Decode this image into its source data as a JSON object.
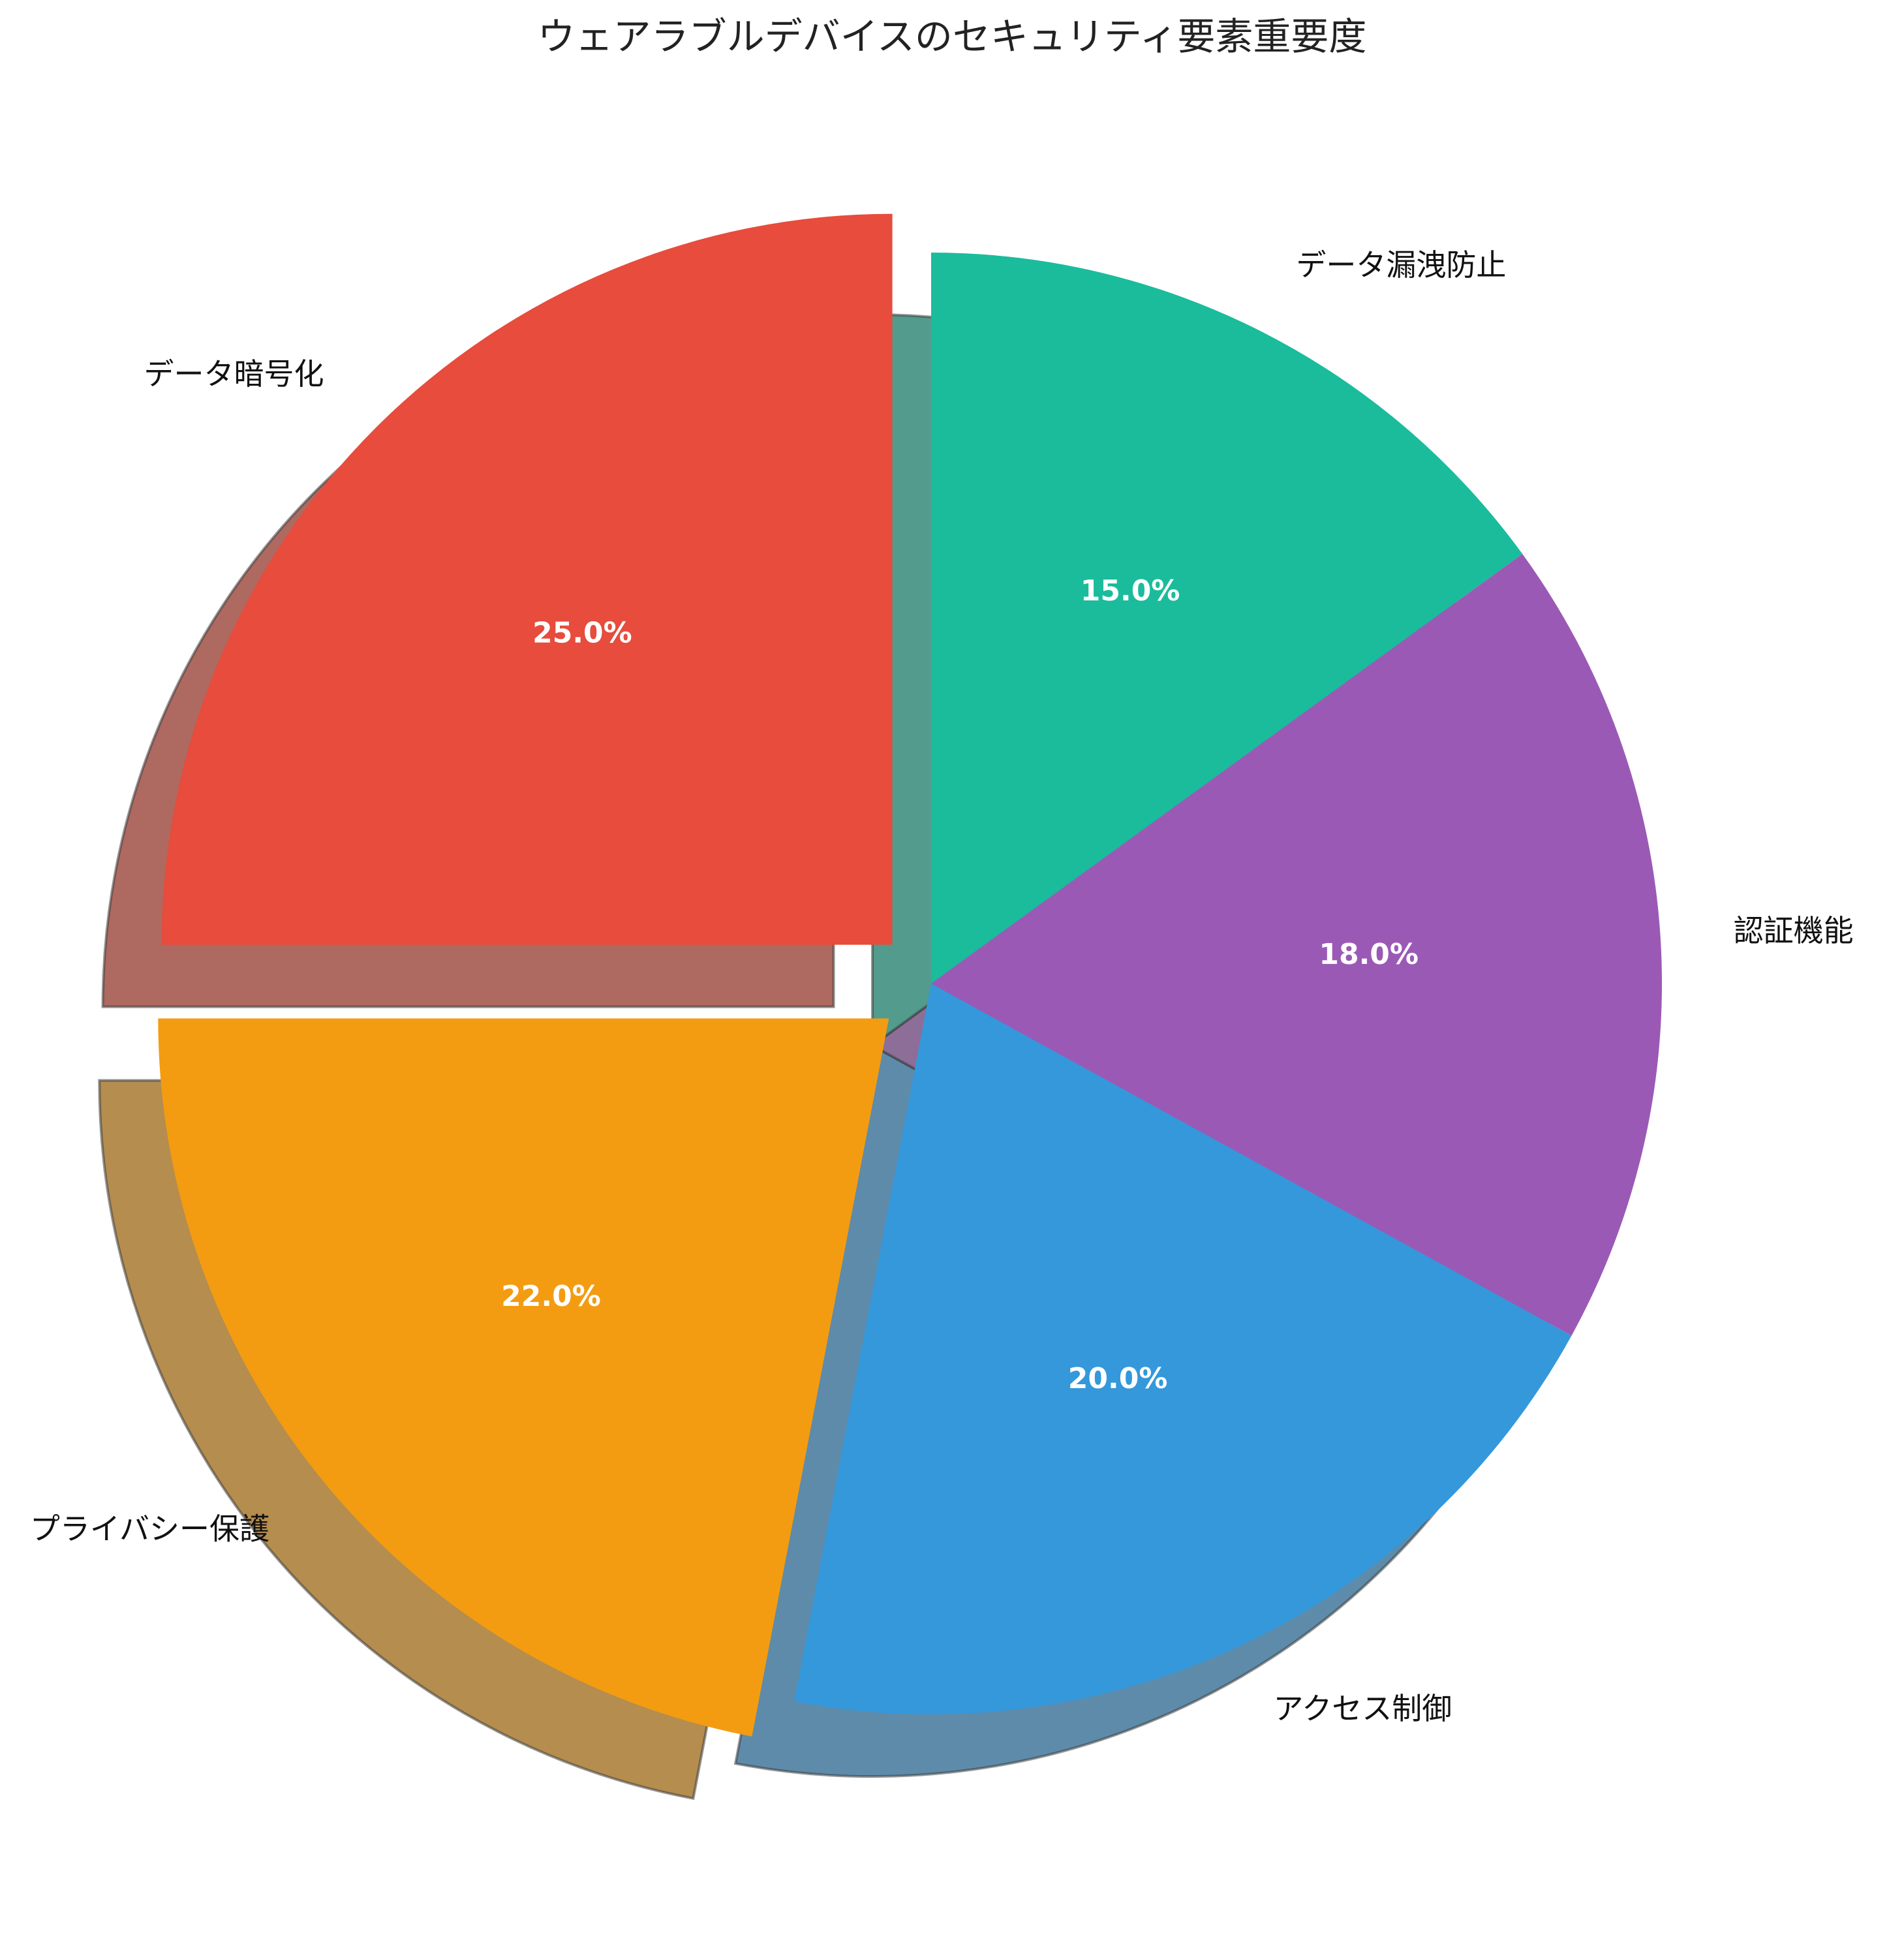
{
  "chart_data": {
    "type": "pie",
    "title": "ウェアラブルデバイスのセキュリティ要素重要度",
    "categories": [
      "データ暗号化",
      "プライバシー保護",
      "アクセス制御",
      "認証機能",
      "データ漏洩防止"
    ],
    "values": [
      25.0,
      22.0,
      20.0,
      18.0,
      15.0
    ],
    "percent_labels": [
      "25.0%",
      "22.0%",
      "20.0%",
      "18.0%",
      "15.0%"
    ],
    "colors": [
      "#E74C3C",
      "#F39C12",
      "#3498DB",
      "#9B59B6",
      "#1ABC9C"
    ],
    "exploded": [
      true,
      true,
      false,
      false,
      false
    ],
    "start_angle_deg": 90,
    "direction": "counterclockwise",
    "shadow": true,
    "legend": "none"
  }
}
